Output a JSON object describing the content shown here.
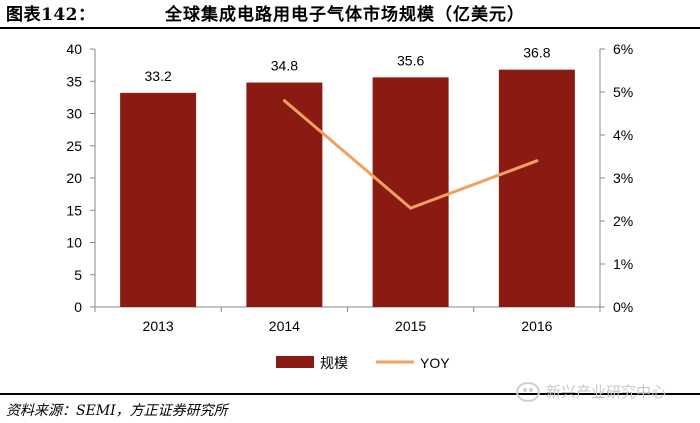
{
  "header": {
    "figure_label": "图表142：",
    "title": "全球集成电路用电子气体市场规模（亿美元）"
  },
  "source": "资料来源：SEMI，方正证券研究所",
  "watermark": "新兴产业研究中心",
  "colors": {
    "bar": "#8B1A13",
    "line": "#F0A060",
    "axis": "#888888",
    "text": "#000000"
  },
  "chart_data": {
    "type": "bar",
    "title": "全球集成电路用电子气体市场规模（亿美元）",
    "categories": [
      "2013",
      "2014",
      "2015",
      "2016"
    ],
    "series": [
      {
        "name": "规模",
        "type": "bar",
        "axis": "left",
        "values": [
          33.2,
          34.8,
          35.6,
          36.8
        ],
        "labels": [
          "33.2",
          "34.8",
          "35.6",
          "36.8"
        ]
      },
      {
        "name": "YOY",
        "type": "line",
        "axis": "right",
        "values": [
          null,
          0.048,
          0.023,
          0.034
        ]
      }
    ],
    "y_left": {
      "min": 0,
      "max": 40,
      "ticks": [
        "0",
        "5",
        "10",
        "15",
        "20",
        "25",
        "30",
        "35",
        "40"
      ]
    },
    "y_right": {
      "min": 0,
      "max": 0.06,
      "ticks": [
        "0%",
        "1%",
        "2%",
        "3%",
        "4%",
        "5%",
        "6%"
      ]
    },
    "legend": [
      "规模",
      "YOY"
    ],
    "legend_position": "bottom"
  }
}
